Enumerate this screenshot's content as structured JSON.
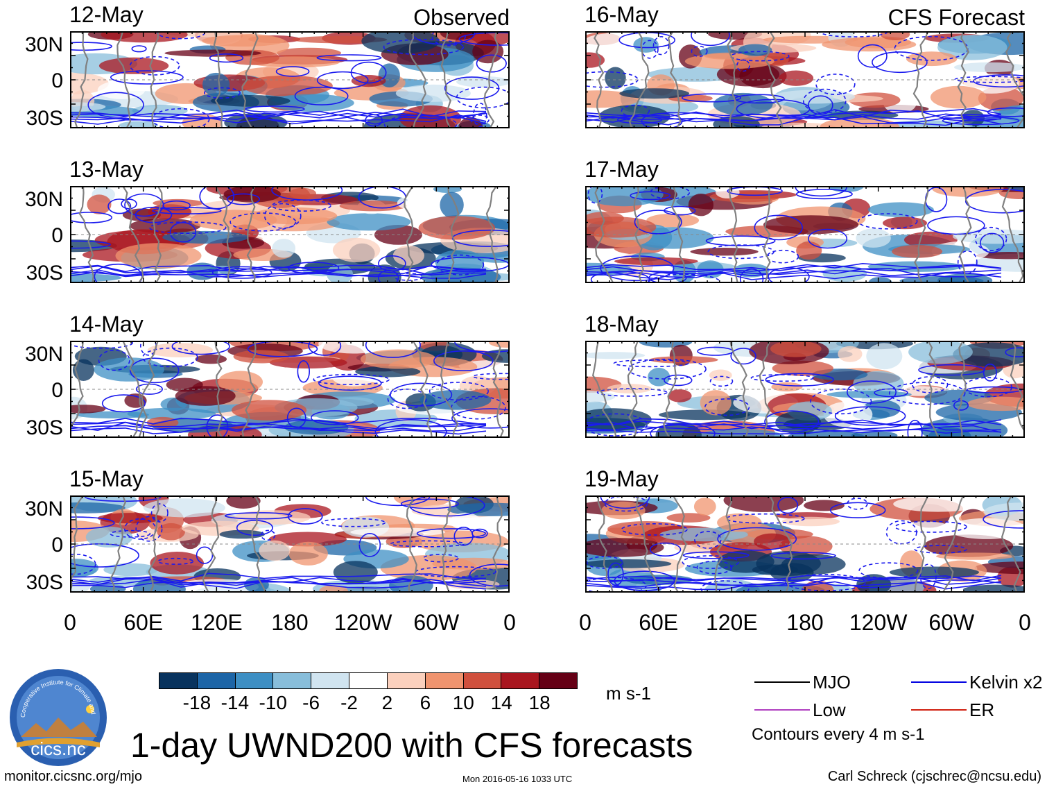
{
  "chart_data": {
    "type": "heatmap",
    "title": "1-day UWND200 with CFS forecasts",
    "units": "m s-1",
    "colorbar": {
      "ticks": [
        "-18",
        "-14",
        "-10",
        "-6",
        "-2",
        "2",
        "6",
        "10",
        "14",
        "18"
      ],
      "colors": [
        "#08335e",
        "#1c65a7",
        "#3d8fc4",
        "#88bedb",
        "#d0e4f0",
        "#ffffff",
        "#fbd0bd",
        "#f0946f",
        "#d0503d",
        "#a9161f",
        "#650015"
      ]
    },
    "columns": [
      {
        "label": "Observed",
        "panels": [
          "12-May",
          "13-May",
          "14-May",
          "15-May"
        ]
      },
      {
        "label": "CFS Forecast",
        "panels": [
          "16-May",
          "17-May",
          "18-May",
          "19-May"
        ]
      }
    ],
    "lat_ticks": [
      "30N",
      "0",
      "30S"
    ],
    "lon_ticks": [
      "0",
      "60E",
      "120E",
      "180",
      "120W",
      "60W",
      "0"
    ],
    "legend": [
      {
        "label": "MJO",
        "color": "#000000"
      },
      {
        "label": "Kelvin x2",
        "color": "#0000e0"
      },
      {
        "label": "Low",
        "color": "#b040c0"
      },
      {
        "label": "ER",
        "color": "#d02010"
      }
    ],
    "contour_note": "Contours every 4 m s-1"
  },
  "logo": {
    "text": "cics.nc",
    "ring_text": "Cooperative Institute for Climate and Satellites"
  },
  "footer": {
    "url": "monitor.cicsnc.org/mjo",
    "timestamp": "Mon 2016-05-16 1033 UTC",
    "credit": "Carl Schreck (cjschrec@ncsu.edu)"
  }
}
